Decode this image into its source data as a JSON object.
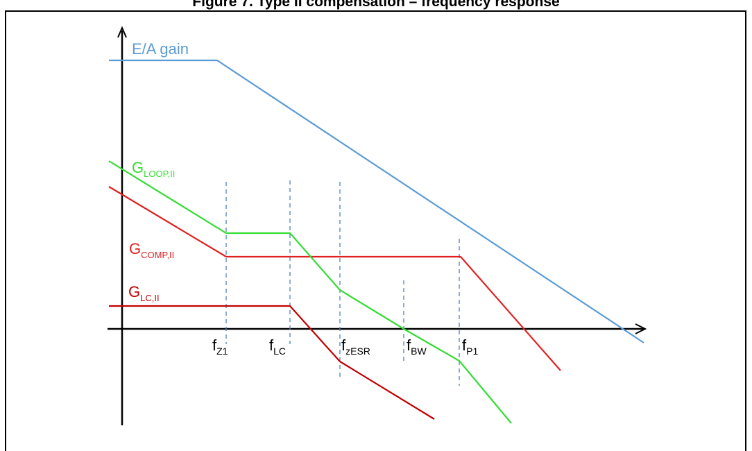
{
  "title": "Figure 7. Type II compensation – frequency response",
  "colors": {
    "ea_gain": "#5b9bd5",
    "loop": "#33dd33",
    "comp": "#e02020",
    "lc": "#c00000",
    "marker": "#4f81bd",
    "axis": "#000000"
  },
  "curves": {
    "ea_gain": {
      "label": "E/A gain"
    },
    "loop": {
      "label_main": "G",
      "label_sub": "LOOP,II"
    },
    "comp": {
      "label_main": "G",
      "label_sub": "COMP,II"
    },
    "lc": {
      "label_main": "G",
      "label_sub": "LC,II"
    }
  },
  "frequencies": [
    {
      "main": "f",
      "sub": "Z1"
    },
    {
      "main": "f",
      "sub": "LC"
    },
    {
      "main": "f",
      "sub": "zESR"
    },
    {
      "main": "f",
      "sub": "BW"
    },
    {
      "main": "f",
      "sub": "P1"
    }
  ]
}
